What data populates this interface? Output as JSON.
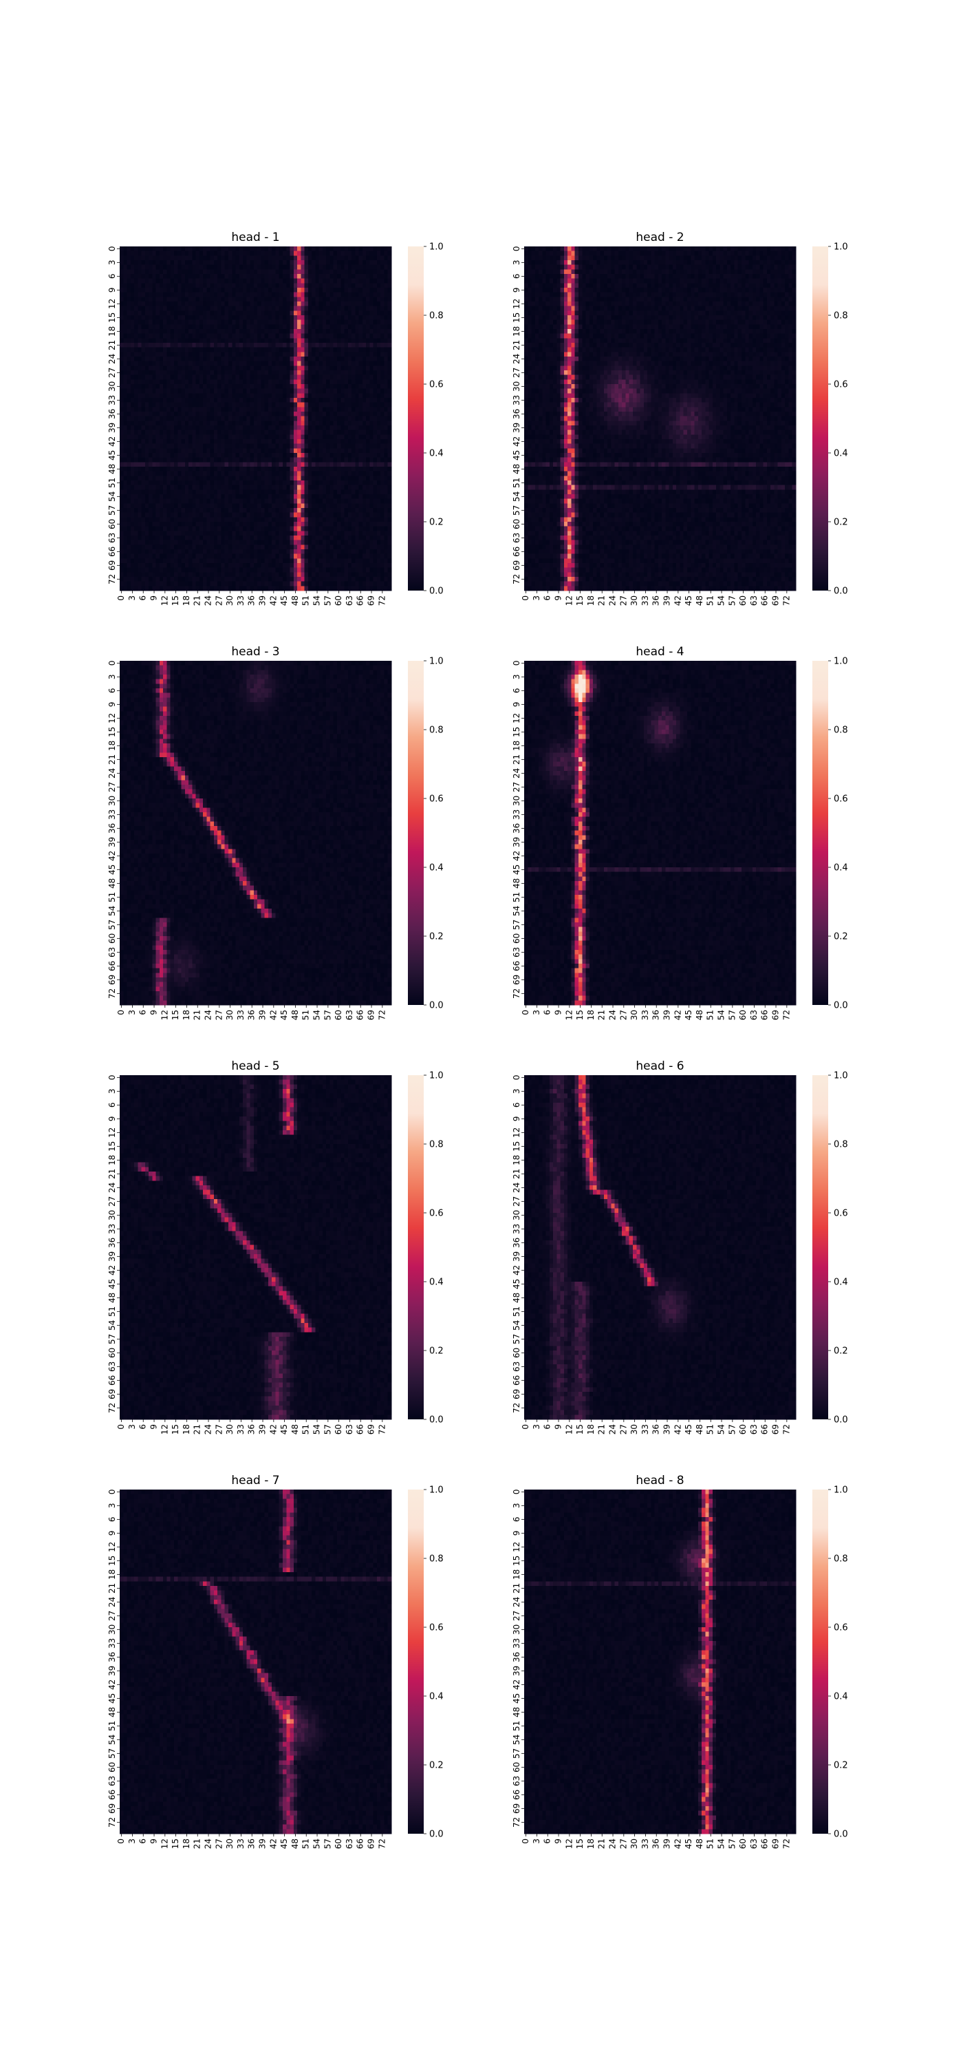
{
  "figure": {
    "background": "#ffffff"
  },
  "colormap": {
    "name": "rocket",
    "stops": [
      "#03051a",
      "#2b1637",
      "#5a1e4f",
      "#8b1d5b",
      "#c1185a",
      "#e83f3f",
      "#f0765b",
      "#f6a886",
      "#fbe3d6",
      "#faebdd"
    ]
  },
  "chart_data": [
    {
      "type": "heatmap",
      "title": "head - 1",
      "n_rows": 75,
      "n_cols": 75,
      "x_ticks": [
        "0",
        "3",
        "6",
        "9",
        "12",
        "15",
        "18",
        "21",
        "24",
        "27",
        "30",
        "33",
        "36",
        "39",
        "42",
        "45",
        "48",
        "51",
        "54",
        "57",
        "60",
        "63",
        "66",
        "69",
        "72"
      ],
      "y_ticks": [
        "0",
        "3",
        "6",
        "9",
        "12",
        "15",
        "18",
        "21",
        "24",
        "27",
        "30",
        "33",
        "36",
        "39",
        "42",
        "45",
        "48",
        "51",
        "54",
        "57",
        "60",
        "63",
        "66",
        "69",
        "72"
      ],
      "colorbar_range": [
        0,
        1.0
      ],
      "colorbar_ticks": [
        "0.0",
        "0.2",
        "0.4",
        "0.6",
        "0.8",
        "1.0"
      ],
      "features": [
        {
          "kind": "segment",
          "from": [
            0,
            49
          ],
          "to": [
            74,
            49
          ],
          "peak": 0.55,
          "width": 0.9
        },
        {
          "kind": "band_row",
          "row": 47,
          "level": 0.06
        },
        {
          "kind": "band_row",
          "row": 21,
          "level": 0.04
        }
      ]
    },
    {
      "type": "heatmap",
      "title": "head - 2",
      "n_rows": 75,
      "n_cols": 75,
      "x_ticks": [
        "0",
        "3",
        "6",
        "9",
        "12",
        "15",
        "18",
        "21",
        "24",
        "27",
        "30",
        "33",
        "36",
        "39",
        "42",
        "45",
        "48",
        "51",
        "54",
        "57",
        "60",
        "63",
        "66",
        "69",
        "72"
      ],
      "y_ticks": [
        "0",
        "3",
        "6",
        "9",
        "12",
        "15",
        "18",
        "21",
        "24",
        "27",
        "30",
        "33",
        "36",
        "39",
        "42",
        "45",
        "48",
        "51",
        "54",
        "57",
        "60",
        "63",
        "66",
        "69",
        "72"
      ],
      "colorbar_range": [
        0,
        1.0
      ],
      "colorbar_ticks": [
        "0.0",
        "0.2",
        "0.4",
        "0.6",
        "0.8",
        "1.0"
      ],
      "features": [
        {
          "kind": "segment",
          "from": [
            0,
            12
          ],
          "to": [
            74,
            12
          ],
          "peak": 0.6,
          "width": 1.0
        },
        {
          "kind": "blob",
          "row": 32,
          "col": 27,
          "peak": 0.22,
          "radius": 4
        },
        {
          "kind": "blob",
          "row": 38,
          "col": 45,
          "peak": 0.15,
          "radius": 4
        },
        {
          "kind": "band_row",
          "row": 47,
          "level": 0.08
        },
        {
          "kind": "band_row",
          "row": 52,
          "level": 0.06
        }
      ]
    },
    {
      "type": "heatmap",
      "title": "head - 3",
      "n_rows": 75,
      "n_cols": 75,
      "x_ticks": [
        "0",
        "3",
        "6",
        "9",
        "12",
        "15",
        "18",
        "21",
        "24",
        "27",
        "30",
        "33",
        "36",
        "39",
        "42",
        "45",
        "48",
        "51",
        "54",
        "57",
        "60",
        "63",
        "66",
        "69",
        "72"
      ],
      "y_ticks": [
        "0",
        "3",
        "6",
        "9",
        "12",
        "15",
        "18",
        "21",
        "24",
        "27",
        "30",
        "33",
        "36",
        "39",
        "42",
        "45",
        "48",
        "51",
        "54",
        "57",
        "60",
        "63",
        "66",
        "69",
        "72"
      ],
      "colorbar_range": [
        0,
        1.0
      ],
      "colorbar_ticks": [
        "0.0",
        "0.2",
        "0.4",
        "0.6",
        "0.8",
        "1.0"
      ],
      "features": [
        {
          "kind": "segment",
          "from": [
            0,
            11
          ],
          "to": [
            20,
            12
          ],
          "peak": 0.4,
          "width": 1.0
        },
        {
          "kind": "segment",
          "from": [
            20,
            13
          ],
          "to": [
            55,
            40
          ],
          "peak": 0.5,
          "width": 0.9
        },
        {
          "kind": "segment",
          "from": [
            56,
            11
          ],
          "to": [
            74,
            11
          ],
          "peak": 0.35,
          "width": 1.0
        },
        {
          "kind": "blob",
          "row": 5,
          "col": 38,
          "peak": 0.12,
          "radius": 3
        },
        {
          "kind": "blob",
          "row": 66,
          "col": 17,
          "peak": 0.1,
          "radius": 3
        }
      ]
    },
    {
      "type": "heatmap",
      "title": "head - 4",
      "n_rows": 75,
      "n_cols": 75,
      "x_ticks": [
        "0",
        "3",
        "6",
        "9",
        "12",
        "15",
        "18",
        "21",
        "24",
        "27",
        "30",
        "33",
        "36",
        "39",
        "42",
        "45",
        "48",
        "51",
        "54",
        "57",
        "60",
        "63",
        "66",
        "69",
        "72"
      ],
      "y_ticks": [
        "0",
        "3",
        "6",
        "9",
        "12",
        "15",
        "18",
        "21",
        "24",
        "27",
        "30",
        "33",
        "36",
        "39",
        "42",
        "45",
        "48",
        "51",
        "54",
        "57",
        "60",
        "63",
        "66",
        "69",
        "72"
      ],
      "colorbar_range": [
        0,
        1.0
      ],
      "colorbar_ticks": [
        "0.0",
        "0.2",
        "0.4",
        "0.6",
        "0.8",
        "1.0"
      ],
      "features": [
        {
          "kind": "segment",
          "from": [
            0,
            15
          ],
          "to": [
            74,
            15
          ],
          "peak": 0.6,
          "width": 0.9
        },
        {
          "kind": "blob",
          "row": 5,
          "col": 15,
          "peak": 1.0,
          "radius": 2
        },
        {
          "kind": "blob",
          "row": 14,
          "col": 38,
          "peak": 0.2,
          "radius": 3
        },
        {
          "kind": "band_row",
          "row": 45,
          "level": 0.07
        },
        {
          "kind": "blob",
          "row": 22,
          "col": 10,
          "peak": 0.15,
          "radius": 3
        }
      ]
    },
    {
      "type": "heatmap",
      "title": "head - 5",
      "n_rows": 75,
      "n_cols": 75,
      "x_ticks": [
        "0",
        "3",
        "6",
        "9",
        "12",
        "15",
        "18",
        "21",
        "24",
        "27",
        "30",
        "33",
        "36",
        "39",
        "42",
        "45",
        "48",
        "51",
        "54",
        "57",
        "60",
        "63",
        "66",
        "69",
        "72"
      ],
      "y_ticks": [
        "0",
        "3",
        "6",
        "9",
        "12",
        "15",
        "18",
        "21",
        "24",
        "27",
        "30",
        "33",
        "36",
        "39",
        "42",
        "45",
        "48",
        "51",
        "54",
        "57",
        "60",
        "63",
        "66",
        "69",
        "72"
      ],
      "colorbar_range": [
        0,
        1.0
      ],
      "colorbar_ticks": [
        "0.0",
        "0.2",
        "0.4",
        "0.6",
        "0.8",
        "1.0"
      ],
      "features": [
        {
          "kind": "segment",
          "from": [
            0,
            46
          ],
          "to": [
            12,
            46
          ],
          "peak": 0.45,
          "width": 1.0
        },
        {
          "kind": "segment",
          "from": [
            19,
            5
          ],
          "to": [
            22,
            9
          ],
          "peak": 0.35,
          "width": 1.0
        },
        {
          "kind": "segment",
          "from": [
            22,
            21
          ],
          "to": [
            55,
            52
          ],
          "peak": 0.45,
          "width": 1.0
        },
        {
          "kind": "segment",
          "from": [
            56,
            43
          ],
          "to": [
            74,
            43
          ],
          "peak": 0.2,
          "width": 2.0
        },
        {
          "kind": "segment",
          "from": [
            0,
            35
          ],
          "to": [
            20,
            35
          ],
          "peak": 0.1,
          "width": 1.0
        }
      ]
    },
    {
      "type": "heatmap",
      "title": "head - 6",
      "n_rows": 75,
      "n_cols": 75,
      "x_ticks": [
        "0",
        "3",
        "6",
        "9",
        "12",
        "15",
        "18",
        "21",
        "24",
        "27",
        "30",
        "33",
        "36",
        "39",
        "42",
        "45",
        "48",
        "51",
        "54",
        "57",
        "60",
        "63",
        "66",
        "69",
        "72"
      ],
      "y_ticks": [
        "0",
        "3",
        "6",
        "9",
        "12",
        "15",
        "18",
        "21",
        "24",
        "27",
        "30",
        "33",
        "36",
        "39",
        "42",
        "45",
        "48",
        "51",
        "54",
        "57",
        "60",
        "63",
        "66",
        "69",
        "72"
      ],
      "colorbar_range": [
        0,
        1.0
      ],
      "colorbar_ticks": [
        "0.0",
        "0.2",
        "0.4",
        "0.6",
        "0.8",
        "1.0"
      ],
      "features": [
        {
          "kind": "segment",
          "from": [
            0,
            15
          ],
          "to": [
            25,
            19
          ],
          "peak": 0.5,
          "width": 1.0
        },
        {
          "kind": "segment",
          "from": [
            25,
            22
          ],
          "to": [
            45,
            35
          ],
          "peak": 0.45,
          "width": 0.9
        },
        {
          "kind": "segment",
          "from": [
            0,
            9
          ],
          "to": [
            74,
            9
          ],
          "peak": 0.12,
          "width": 1.5
        },
        {
          "kind": "segment",
          "from": [
            45,
            15
          ],
          "to": [
            74,
            15
          ],
          "peak": 0.15,
          "width": 1.5
        },
        {
          "kind": "blob",
          "row": 50,
          "col": 40,
          "peak": 0.15,
          "radius": 3
        }
      ]
    },
    {
      "type": "heatmap",
      "title": "head - 7",
      "n_rows": 75,
      "n_cols": 75,
      "x_ticks": [
        "0",
        "3",
        "6",
        "9",
        "12",
        "15",
        "18",
        "21",
        "24",
        "27",
        "30",
        "33",
        "36",
        "39",
        "42",
        "45",
        "48",
        "51",
        "54",
        "57",
        "60",
        "63",
        "66",
        "69",
        "72"
      ],
      "y_ticks": [
        "0",
        "3",
        "6",
        "9",
        "12",
        "15",
        "18",
        "21",
        "24",
        "27",
        "30",
        "33",
        "36",
        "39",
        "42",
        "45",
        "48",
        "51",
        "54",
        "57",
        "60",
        "63",
        "66",
        "69",
        "72"
      ],
      "colorbar_range": [
        0,
        1.0
      ],
      "colorbar_ticks": [
        "0.0",
        "0.2",
        "0.4",
        "0.6",
        "0.8",
        "1.0"
      ],
      "features": [
        {
          "kind": "segment",
          "from": [
            0,
            46
          ],
          "to": [
            17,
            46
          ],
          "peak": 0.4,
          "width": 1.0
        },
        {
          "kind": "band_row",
          "row": 19,
          "level": 0.07
        },
        {
          "kind": "segment",
          "from": [
            20,
            24
          ],
          "to": [
            50,
            46
          ],
          "peak": 0.4,
          "width": 1.0
        },
        {
          "kind": "segment",
          "from": [
            45,
            46
          ],
          "to": [
            74,
            46
          ],
          "peak": 0.35,
          "width": 1.2
        },
        {
          "kind": "blob",
          "row": 52,
          "col": 50,
          "peak": 0.15,
          "radius": 3
        }
      ]
    },
    {
      "type": "heatmap",
      "title": "head - 8",
      "n_rows": 75,
      "n_cols": 75,
      "x_ticks": [
        "0",
        "3",
        "6",
        "9",
        "12",
        "15",
        "18",
        "21",
        "24",
        "27",
        "30",
        "33",
        "36",
        "39",
        "42",
        "45",
        "48",
        "51",
        "54",
        "57",
        "60",
        "63",
        "66",
        "69",
        "72"
      ],
      "y_ticks": [
        "0",
        "3",
        "6",
        "9",
        "12",
        "15",
        "18",
        "21",
        "24",
        "27",
        "30",
        "33",
        "36",
        "39",
        "42",
        "45",
        "48",
        "51",
        "54",
        "57",
        "60",
        "63",
        "66",
        "69",
        "72"
      ],
      "colorbar_range": [
        0,
        1.0
      ],
      "colorbar_ticks": [
        "0.0",
        "0.2",
        "0.4",
        "0.6",
        "0.8",
        "1.0"
      ],
      "features": [
        {
          "kind": "segment",
          "from": [
            0,
            50
          ],
          "to": [
            74,
            50
          ],
          "peak": 0.55,
          "width": 0.9
        },
        {
          "kind": "band_row",
          "row": 20,
          "level": 0.06
        },
        {
          "kind": "blob",
          "row": 15,
          "col": 47,
          "peak": 0.2,
          "radius": 3
        },
        {
          "kind": "blob",
          "row": 40,
          "col": 47,
          "peak": 0.15,
          "radius": 3
        }
      ]
    }
  ]
}
